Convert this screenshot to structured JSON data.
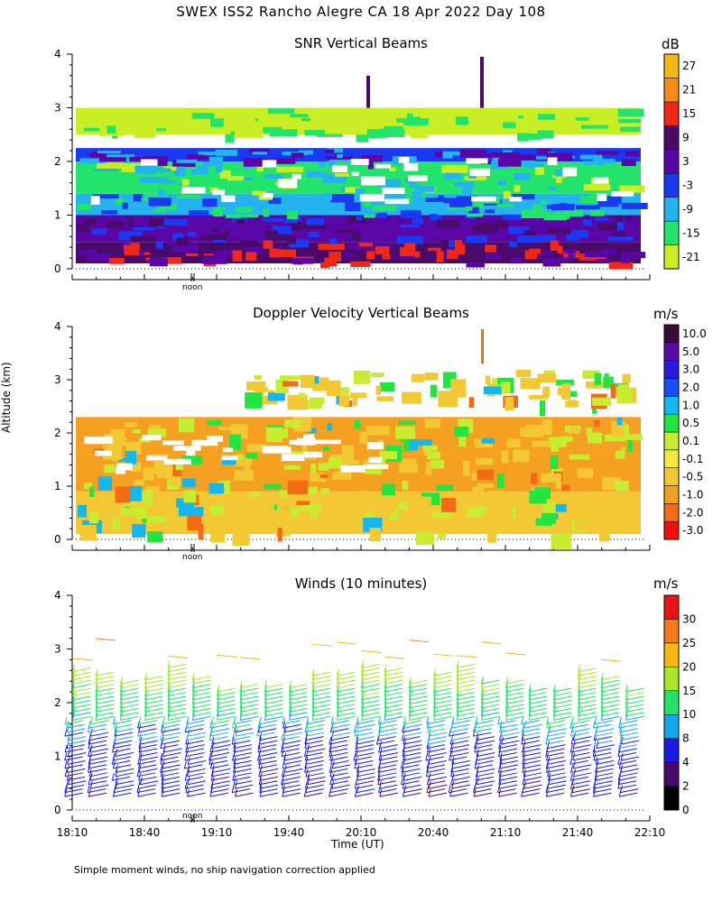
{
  "header": {
    "title": "SWEX ISS2 Rancho Alegre CA  18 Apr 2022 Day 108"
  },
  "y_axis_label": "Altitude (km)",
  "x_axis_label": "Time (UT)",
  "footer_note": "Simple moment winds, no ship navigation correction applied",
  "noon_label": "noon",
  "colorbars": {
    "snr": {
      "unit": "dB",
      "colors": [
        "#c9ee24",
        "#22e46a",
        "#23b3ee",
        "#1a39f2",
        "#5a06a6",
        "#4a0a6a",
        "#f02818",
        "#f58a1a",
        "#f8b814"
      ],
      "labels": [
        "-21",
        "-15",
        "-9",
        "-3",
        "3",
        "9",
        "15",
        "21",
        "27"
      ]
    },
    "doppler": {
      "unit": "m/s",
      "colors": [
        "#f01010",
        "#f56a14",
        "#f5a020",
        "#f3c832",
        "#f5ea3c",
        "#c8ec30",
        "#22e640",
        "#14b8ee",
        "#1a4ef0",
        "#2a1ae0",
        "#5a0aa8",
        "#3a0a3a"
      ],
      "labels": [
        "-3.0",
        "-2.0",
        "-1.0",
        "-0.5",
        "-0.1",
        "0.1",
        "0.5",
        "1.0",
        "2.0",
        "3.0",
        "5.0",
        "10.0"
      ]
    },
    "winds": {
      "unit": "m/s",
      "colors": [
        "#000000",
        "#4a0a6a",
        "#1a1ae0",
        "#12a6ee",
        "#22e46a",
        "#a8e828",
        "#f7b814",
        "#f57a1a",
        "#e81414"
      ],
      "labels": [
        "0",
        "2",
        "4",
        "8",
        "10",
        "15",
        "20",
        "25",
        "30"
      ]
    }
  },
  "chart_data": [
    {
      "type": "heatmap",
      "title": "SNR Vertical Beams",
      "unit": "dB",
      "xlabel": "",
      "ylabel": "Altitude (km)",
      "ylim": [
        0,
        4
      ],
      "yticks": [
        "0",
        "1",
        "2",
        "3",
        "4"
      ],
      "xlim": [
        18.1667,
        22.1667
      ],
      "levels": [
        -21,
        -15,
        -9,
        -3,
        3,
        9,
        15,
        21,
        27
      ],
      "layers": [
        {
          "from_km": 0.1,
          "to_km": 0.5,
          "value": 9
        },
        {
          "from_km": 0.5,
          "to_km": 1.0,
          "value": 3
        },
        {
          "from_km": 1.0,
          "to_km": 1.4,
          "value": -9
        },
        {
          "from_km": 1.4,
          "to_km": 2.0,
          "value": -15
        },
        {
          "from_km": 2.0,
          "to_km": 2.25,
          "value": -3
        },
        {
          "from_km": 2.5,
          "to_km": 3.0,
          "value": -21
        }
      ],
      "hot_patches_dB": 15
    },
    {
      "type": "heatmap",
      "title": "Doppler Velocity Vertical Beams",
      "unit": "m/s",
      "xlabel": "",
      "ylabel": "Altitude (km)",
      "ylim": [
        0,
        4
      ],
      "yticks": [
        "0",
        "1",
        "2",
        "3",
        "4"
      ],
      "xlim": [
        18.1667,
        22.1667
      ],
      "levels": [
        -3.0,
        -2.0,
        -1.0,
        -0.5,
        -0.1,
        0.1,
        0.5,
        1.0,
        2.0,
        3.0,
        5.0,
        10.0
      ],
      "layers": [
        {
          "from_km": 0.1,
          "to_km": 0.9,
          "value": -0.5
        },
        {
          "from_km": 0.9,
          "to_km": 1.6,
          "value": -1.0
        },
        {
          "from_km": 1.6,
          "to_km": 2.3,
          "value": -1.0
        },
        {
          "from_km": 2.6,
          "to_km": 3.2,
          "value": -0.5
        }
      ]
    },
    {
      "type": "scatter",
      "title": "Winds (10 minutes)",
      "unit": "m/s",
      "xlabel": "Time (UT)",
      "ylabel": "Altitude (km)",
      "ylim": [
        0,
        4
      ],
      "yticks": [
        "0",
        "1",
        "2",
        "3",
        "4"
      ],
      "xlim": [
        18.1667,
        22.1667
      ],
      "xticks": [
        "18:10",
        "18:40",
        "19:10",
        "19:40",
        "20:10",
        "20:40",
        "21:10",
        "21:40",
        "22:10"
      ],
      "profile_times_hours": [
        18.17,
        18.33,
        18.5,
        18.67,
        18.83,
        19.0,
        19.17,
        19.33,
        19.5,
        19.67,
        19.83,
        20.0,
        20.17,
        20.33,
        20.5,
        20.67,
        20.83,
        21.0,
        21.17,
        21.33,
        21.5,
        21.67,
        21.83,
        22.0
      ],
      "speed_by_altitude": [
        {
          "alt_km": 0.5,
          "speed_ms": 5
        },
        {
          "alt_km": 1.0,
          "speed_ms": 6
        },
        {
          "alt_km": 1.5,
          "speed_ms": 9
        },
        {
          "alt_km": 2.0,
          "speed_ms": 13
        },
        {
          "alt_km": 2.5,
          "speed_ms": 17
        },
        {
          "alt_km": 3.0,
          "speed_ms": 22
        },
        {
          "alt_km": 3.3,
          "speed_ms": 28
        }
      ]
    }
  ]
}
